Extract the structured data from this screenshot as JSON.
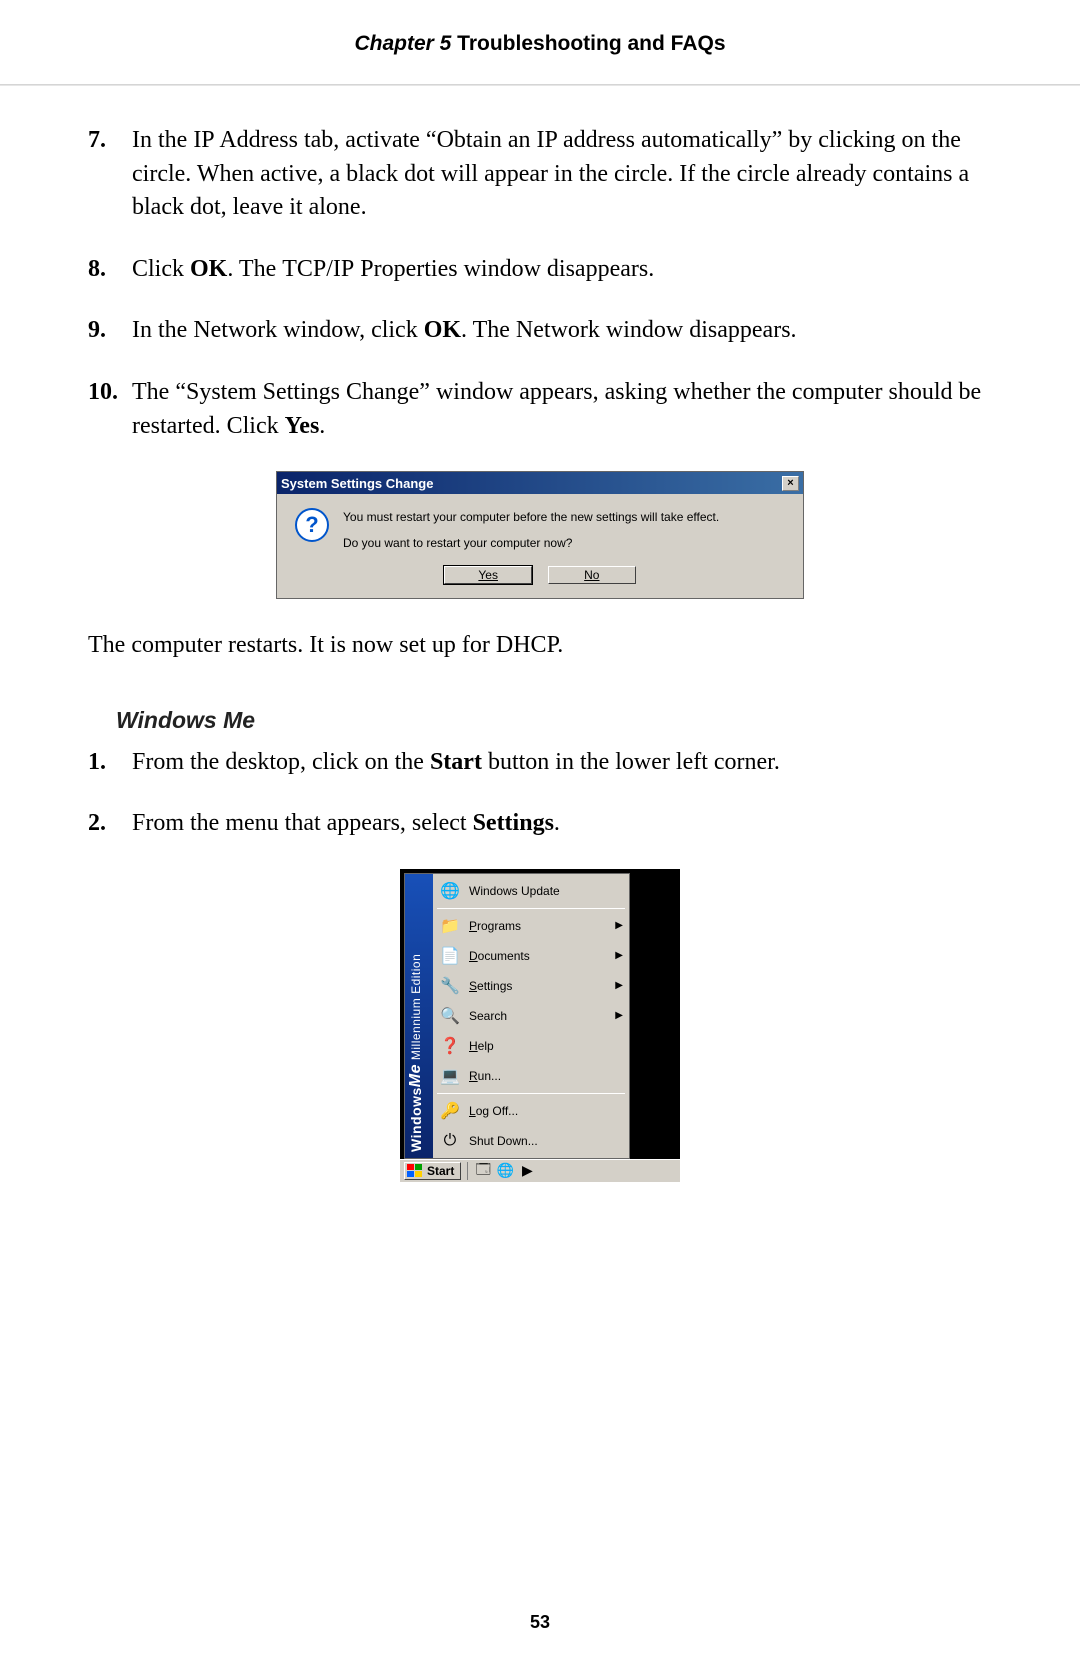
{
  "header": {
    "chapter_label": "Chapter 5",
    "chapter_title": "  Troubleshooting and FAQs"
  },
  "steps_a": [
    {
      "num": "7.",
      "html": "In the <span class='smallcaps'>IP</span> Address tab, activate “Obtain an IP address automatically” by clicking on the circle. When active, a black dot will appear in the circle. If the circle already contains a black dot, leave it alone."
    },
    {
      "num": "8.",
      "html": "Click <span class='bold'>OK</span>. The <span class='smallcaps'>TCP/IP</span> Properties window disappears."
    },
    {
      "num": "9.",
      "html": "In the Network window, click <span class='bold'>OK</span>. The Network window disappears."
    },
    {
      "num": "10.",
      "html": "The “System Settings Change” window appears, asking whether the computer should be restarted. Click <span class='bold'>Yes</span>."
    }
  ],
  "dialog": {
    "title": "System Settings Change",
    "msg1": "You must restart your computer before the new settings will take effect.",
    "msg2": "Do you want to restart your computer now?",
    "yes": "Yes",
    "no": "No",
    "close_glyph": "×"
  },
  "after_dialog": "The computer restarts. It is now set up for DHCP.",
  "subhead": "Windows Me",
  "steps_b": [
    {
      "num": "1.",
      "html": "From the desktop, click on the <span class='bold'>Start</span> button in the lower left corner."
    },
    {
      "num": "2.",
      "html": "From the menu that appears, select <span class='bold'>Settings</span>."
    }
  ],
  "startmenu": {
    "sidebar_windows": "Windows",
    "sidebar_me": "Me",
    "sidebar_edition": " Millennium Edition",
    "items": [
      {
        "label": "Windows Update",
        "icon": "🌐",
        "arrow": false,
        "sep_after": true,
        "ul": false
      },
      {
        "label": "Programs",
        "icon": "📁",
        "arrow": true,
        "sep_after": false,
        "ul": true
      },
      {
        "label": "Documents",
        "icon": "📄",
        "arrow": true,
        "sep_after": false,
        "ul": true
      },
      {
        "label": "Settings",
        "icon": "🔧",
        "arrow": true,
        "sep_after": false,
        "ul": true
      },
      {
        "label": "Search",
        "icon": "🔍",
        "arrow": true,
        "sep_after": false,
        "ul": false
      },
      {
        "label": "Help",
        "icon": "❓",
        "arrow": false,
        "sep_after": false,
        "ul": true
      },
      {
        "label": "Run...",
        "icon": "💻",
        "arrow": false,
        "sep_after": true,
        "ul": true
      },
      {
        "label": "Log Off...",
        "icon": "🔑",
        "arrow": false,
        "sep_after": false,
        "ul": true
      },
      {
        "label": "Shut Down...",
        "icon": "⏻",
        "arrow": false,
        "sep_after": false,
        "ul": false
      }
    ],
    "start_label": "Start",
    "ql_icons": [
      "🗔",
      "🌐",
      "▶"
    ]
  },
  "page_number": "53"
}
